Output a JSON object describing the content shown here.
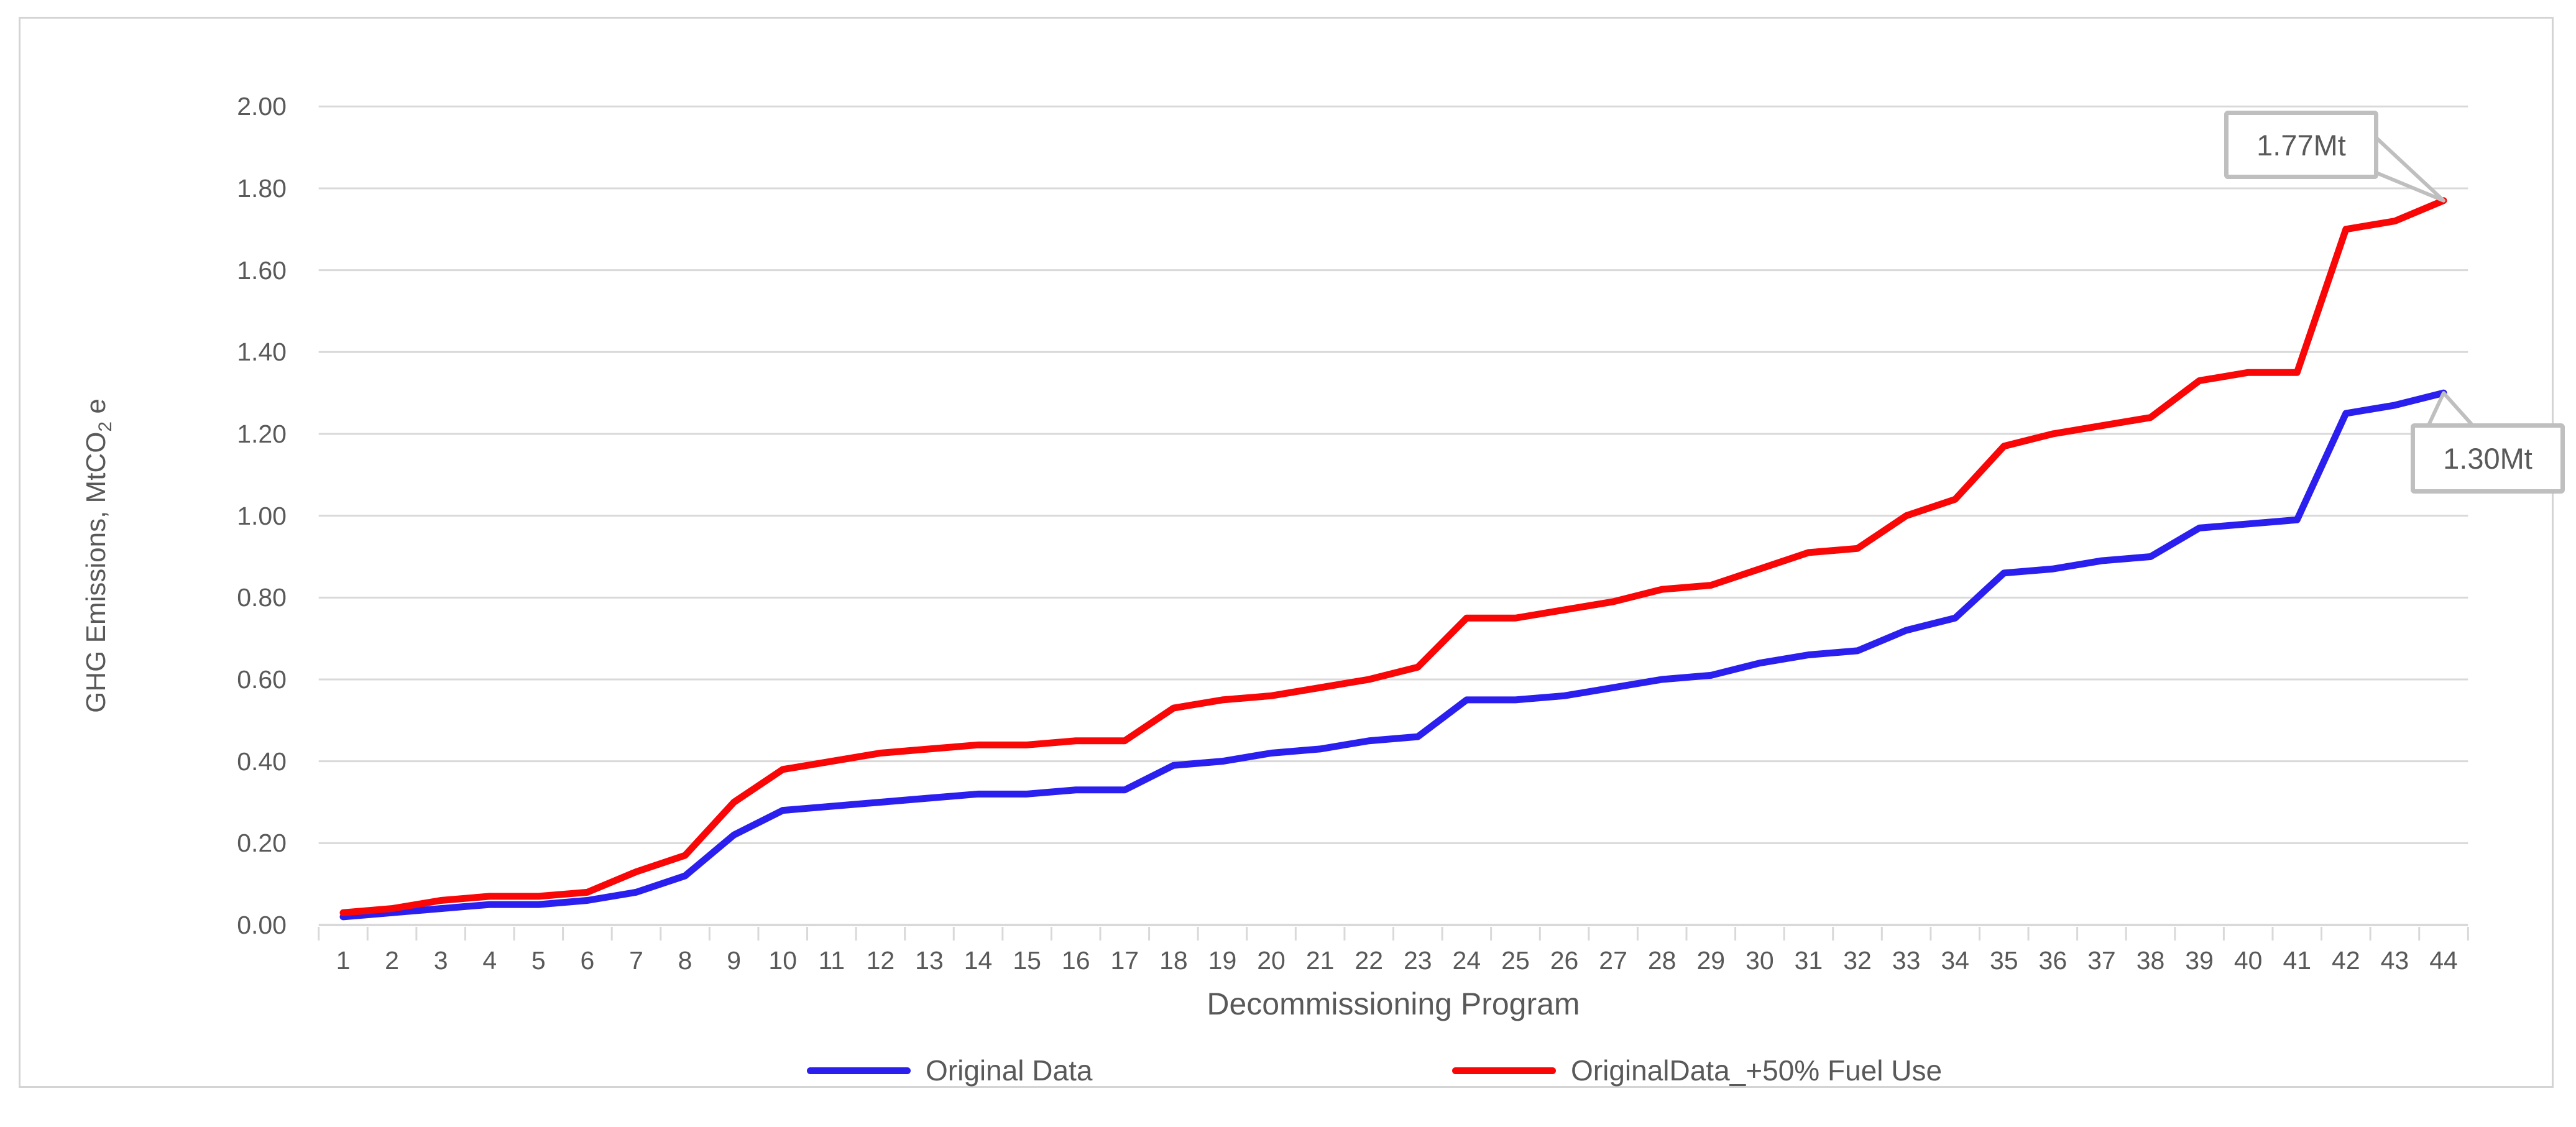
{
  "chart_data": {
    "type": "line",
    "title": "",
    "xlabel": "Decommissioning Program",
    "ylabel": "GHG Emissions, MtCO2 e",
    "ylabel_prefix": "GHG Emissions, MtCO",
    "ylabel_sub": "2",
    "ylabel_suffix": " e",
    "ylim": [
      0.0,
      2.0
    ],
    "y_tick_step": 0.2,
    "y_ticks": [
      "0.00",
      "0.20",
      "0.40",
      "0.60",
      "0.80",
      "1.00",
      "1.20",
      "1.40",
      "1.60",
      "1.80",
      "2.00"
    ],
    "categories": [
      "1",
      "2",
      "3",
      "4",
      "5",
      "6",
      "7",
      "8",
      "9",
      "10",
      "11",
      "12",
      "13",
      "14",
      "15",
      "16",
      "17",
      "18",
      "19",
      "20",
      "21",
      "22",
      "23",
      "24",
      "25",
      "26",
      "27",
      "28",
      "29",
      "30",
      "31",
      "32",
      "33",
      "34",
      "35",
      "36",
      "37",
      "38",
      "39",
      "40",
      "41",
      "42",
      "43",
      "44"
    ],
    "grid": "horizontal",
    "legend_position": "bottom",
    "series": [
      {
        "name": "Original Data",
        "color": "#2b1ff0",
        "values": [
          0.02,
          0.03,
          0.04,
          0.05,
          0.05,
          0.06,
          0.08,
          0.12,
          0.22,
          0.28,
          0.29,
          0.3,
          0.31,
          0.32,
          0.32,
          0.33,
          0.33,
          0.39,
          0.4,
          0.42,
          0.43,
          0.45,
          0.46,
          0.55,
          0.55,
          0.56,
          0.58,
          0.6,
          0.61,
          0.64,
          0.66,
          0.67,
          0.72,
          0.75,
          0.86,
          0.87,
          0.89,
          0.9,
          0.97,
          0.98,
          0.99,
          1.25,
          1.27,
          1.3
        ]
      },
      {
        "name": "OriginalData_+50% Fuel Use",
        "color": "#f90606",
        "values": [
          0.03,
          0.04,
          0.06,
          0.07,
          0.07,
          0.08,
          0.13,
          0.17,
          0.3,
          0.38,
          0.4,
          0.42,
          0.43,
          0.44,
          0.44,
          0.45,
          0.45,
          0.53,
          0.55,
          0.56,
          0.58,
          0.6,
          0.63,
          0.75,
          0.75,
          0.77,
          0.79,
          0.82,
          0.83,
          0.87,
          0.91,
          0.92,
          1.0,
          1.04,
          1.17,
          1.2,
          1.22,
          1.24,
          1.33,
          1.35,
          1.35,
          1.7,
          1.72,
          1.77
        ]
      }
    ],
    "annotations": [
      {
        "label": "1.77Mt",
        "series": "OriginalData_+50% Fuel Use",
        "category": "44",
        "value": 1.77
      },
      {
        "label": "1.30Mt",
        "series": "Original Data",
        "category": "44",
        "value": 1.3
      }
    ],
    "colors": {
      "gridline": "#d9d9d9",
      "axis": "#d9d9d9",
      "text": "#595959",
      "callout_border": "#bfbfbf",
      "frame_border": "#d4d4d4"
    }
  }
}
